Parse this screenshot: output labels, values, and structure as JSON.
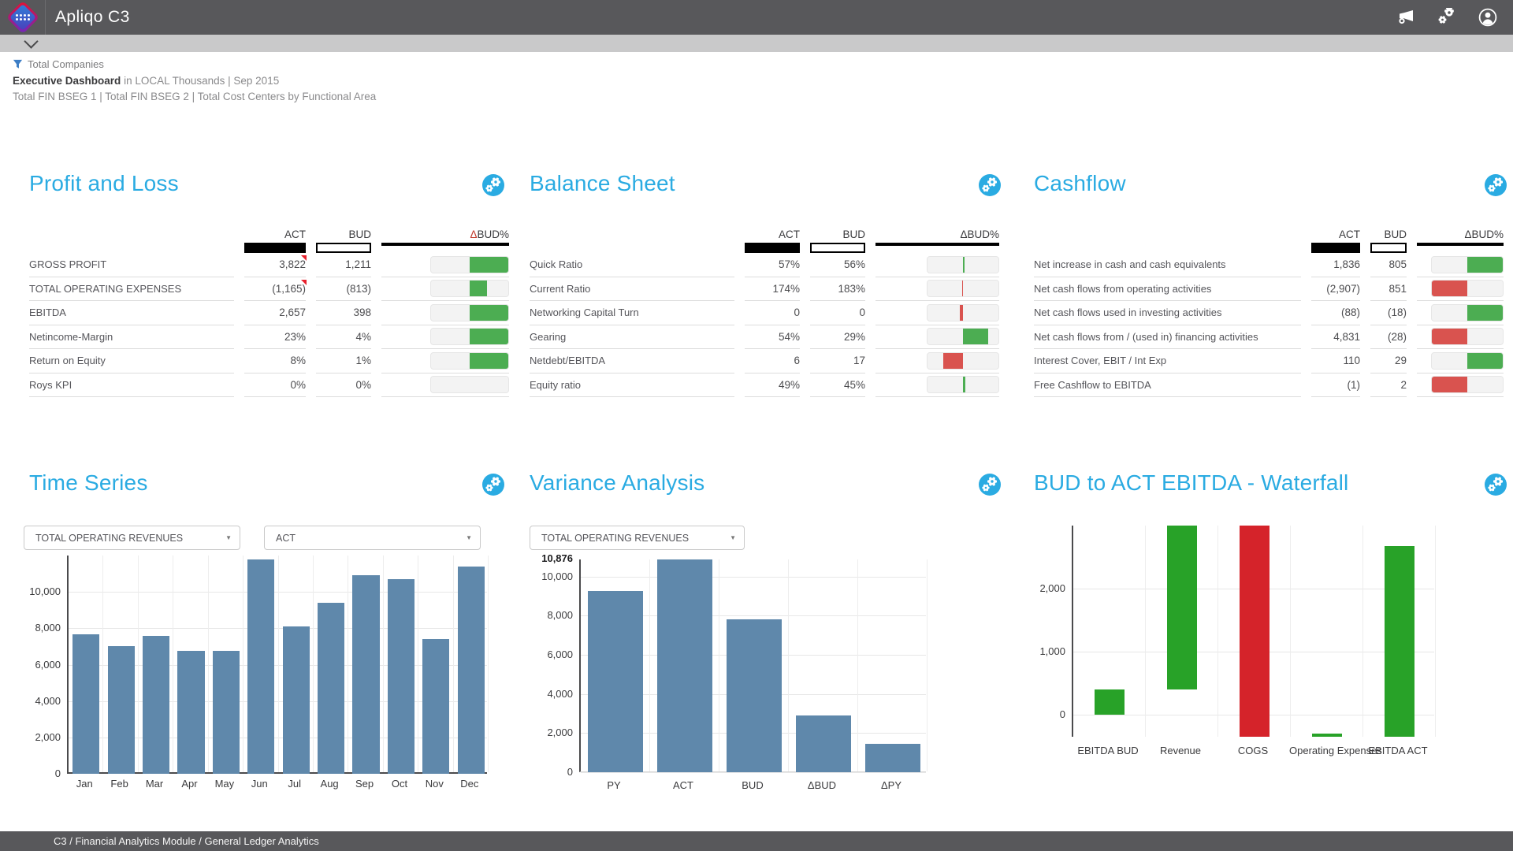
{
  "colors": {
    "accent_blue": "#2aabe2",
    "chart_bar_blue": "#5f88ab",
    "table_green": "#4cad52",
    "table_red": "#d9534f",
    "waterfall_green": "#28a228",
    "waterfall_red": "#d5232a",
    "header_gray": "#58585b"
  },
  "header": {
    "app_title": "Apliqo C3",
    "icons": [
      "megaphone-icon",
      "gears-icon",
      "user-icon"
    ]
  },
  "context": {
    "filter": "Total Companies",
    "view_title": "Executive Dashboard",
    "view_subtitle": " in LOCAL Thousands | Sep 2015",
    "dimensions": "Total FIN BSEG 1 | Total FIN BSEG 2 | Total Cost Centers by Functional Area"
  },
  "tables": {
    "pnl": {
      "title": "Profit and Loss",
      "columns": {
        "act": "ACT",
        "bud": "BUD",
        "delta": "ΔBUD%"
      },
      "rows": [
        {
          "label": "GROSS PROFIT",
          "act": "3,822",
          "bud": "1,211",
          "flag": true,
          "bar": {
            "color": "green",
            "from": 50,
            "to": 100
          }
        },
        {
          "label": "TOTAL OPERATING EXPENSES",
          "act": "(1,165)",
          "bud": "(813)",
          "flag": true,
          "bar": {
            "color": "green",
            "from": 50,
            "to": 72
          }
        },
        {
          "label": "EBITDA",
          "act": "2,657",
          "bud": "398",
          "flag": false,
          "bar": {
            "color": "green",
            "from": 50,
            "to": 100
          }
        },
        {
          "label": "Netincome-Margin",
          "act": "23%",
          "bud": "4%",
          "flag": false,
          "bar": {
            "color": "green",
            "from": 50,
            "to": 100
          }
        },
        {
          "label": "Return on Equity",
          "act": "8%",
          "bud": "1%",
          "flag": false,
          "bar": {
            "color": "green",
            "from": 50,
            "to": 100
          }
        },
        {
          "label": "Roys KPI",
          "act": "0%",
          "bud": "0%",
          "flag": false,
          "bar": null
        }
      ]
    },
    "balance": {
      "title": "Balance Sheet",
      "columns": {
        "act": "ACT",
        "bud": "BUD",
        "delta": "ΔBUD%"
      },
      "rows": [
        {
          "label": "Quick Ratio",
          "act": "57%",
          "bud": "56%",
          "flag": false,
          "bar": {
            "color": "green",
            "from": 50,
            "to": 52
          }
        },
        {
          "label": "Current Ratio",
          "act": "174%",
          "bud": "183%",
          "flag": false,
          "bar": {
            "color": "red",
            "from": 48.5,
            "to": 50
          }
        },
        {
          "label": "Networking Capital Turn",
          "act": "0",
          "bud": "0",
          "flag": false,
          "bar": {
            "color": "red",
            "from": 45.5,
            "to": 50
          }
        },
        {
          "label": "Gearing",
          "act": "54%",
          "bud": "29%",
          "flag": false,
          "bar": {
            "color": "green",
            "from": 50,
            "to": 85
          }
        },
        {
          "label": "Netdebt/EBITDA",
          "act": "6",
          "bud": "17",
          "flag": false,
          "bar": {
            "color": "red",
            "from": 22,
            "to": 50
          }
        },
        {
          "label": "Equity ratio",
          "act": "49%",
          "bud": "45%",
          "flag": false,
          "bar": {
            "color": "green",
            "from": 50,
            "to": 53.5
          }
        }
      ]
    },
    "cashflow": {
      "title": "Cashflow",
      "columns": {
        "act": "ACT",
        "bud": "BUD",
        "delta": "ΔBUD%"
      },
      "rows": [
        {
          "label": "Net increase in cash and cash equivalents",
          "act": "1,836",
          "bud": "805",
          "flag": false,
          "bar": {
            "color": "green",
            "from": 50,
            "to": 100
          }
        },
        {
          "label": "Net cash flows from operating activities",
          "act": "(2,907)",
          "bud": "851",
          "flag": false,
          "bar": {
            "color": "red",
            "from": 0,
            "to": 50
          }
        },
        {
          "label": "Net cash flows used in investing activities",
          "act": "(88)",
          "bud": "(18)",
          "flag": false,
          "bar": {
            "color": "green",
            "from": 50,
            "to": 100
          }
        },
        {
          "label": "Net cash flows from / (used in) financing activities",
          "act": "4,831",
          "bud": "(28)",
          "flag": false,
          "bar": {
            "color": "red",
            "from": 0,
            "to": 50
          }
        },
        {
          "label": "Interest Cover, EBIT / Int Exp",
          "act": "110",
          "bud": "29",
          "flag": false,
          "bar": {
            "color": "green",
            "from": 50,
            "to": 100
          }
        },
        {
          "label": "Free Cashflow to EBITDA",
          "act": "(1)",
          "bud": "2",
          "flag": false,
          "bar": {
            "color": "red",
            "from": 0,
            "to": 50
          }
        }
      ]
    }
  },
  "chart_data": [
    {
      "id": "time_series",
      "type": "bar",
      "title": "Time Series",
      "selectors": [
        "TOTAL OPERATING REVENUES",
        "ACT"
      ],
      "categories": [
        "Jan",
        "Feb",
        "Mar",
        "Apr",
        "May",
        "Jun",
        "Jul",
        "Aug",
        "Sep",
        "Oct",
        "Nov",
        "Dec"
      ],
      "values": [
        7650,
        7000,
        7600,
        6740,
        6740,
        11800,
        8090,
        9390,
        10920,
        10700,
        7390,
        11390
      ],
      "yticks": [
        0,
        2000,
        4000,
        6000,
        8000,
        10000
      ],
      "ylim": [
        0,
        12000
      ],
      "grid": true,
      "legend": "none",
      "bar_color": "#5f88ab"
    },
    {
      "id": "variance",
      "type": "bar",
      "title": "Variance Analysis",
      "selectors": [
        "TOTAL OPERATING REVENUES"
      ],
      "categories": [
        "PY",
        "ACT",
        "BUD",
        "ΔBUD",
        "ΔPY"
      ],
      "values": [
        9250,
        10876,
        7800,
        2900,
        1450
      ],
      "yticks": [
        0,
        2000,
        4000,
        6000,
        8000,
        10000
      ],
      "ytop_label": "10,876",
      "ylim": [
        0,
        10876
      ],
      "grid": true,
      "legend": "none",
      "bar_color": "#5f88ab"
    },
    {
      "id": "waterfall",
      "type": "waterfall",
      "title": "BUD to ACT EBITDA - Waterfall",
      "categories": [
        "EBITDA BUD",
        "Revenue",
        "COGS",
        "Operating Expenses",
        "EBITDA ACT"
      ],
      "bars": [
        {
          "from": 0,
          "to": 400,
          "color": "green"
        },
        {
          "from": 400,
          "to": 3000,
          "color": "green"
        },
        {
          "from": 3000,
          "to": -350,
          "color": "red"
        },
        {
          "from": -300,
          "to": -350,
          "color": "green"
        },
        {
          "from": -350,
          "to": 2675,
          "color": "green"
        }
      ],
      "yticks": [
        0,
        1000,
        2000
      ],
      "ylim": [
        -350,
        3000
      ],
      "grid": true,
      "legend": "none"
    }
  ],
  "footer": {
    "breadcrumb": "C3 / Financial Analytics Module / General Ledger Analytics"
  }
}
